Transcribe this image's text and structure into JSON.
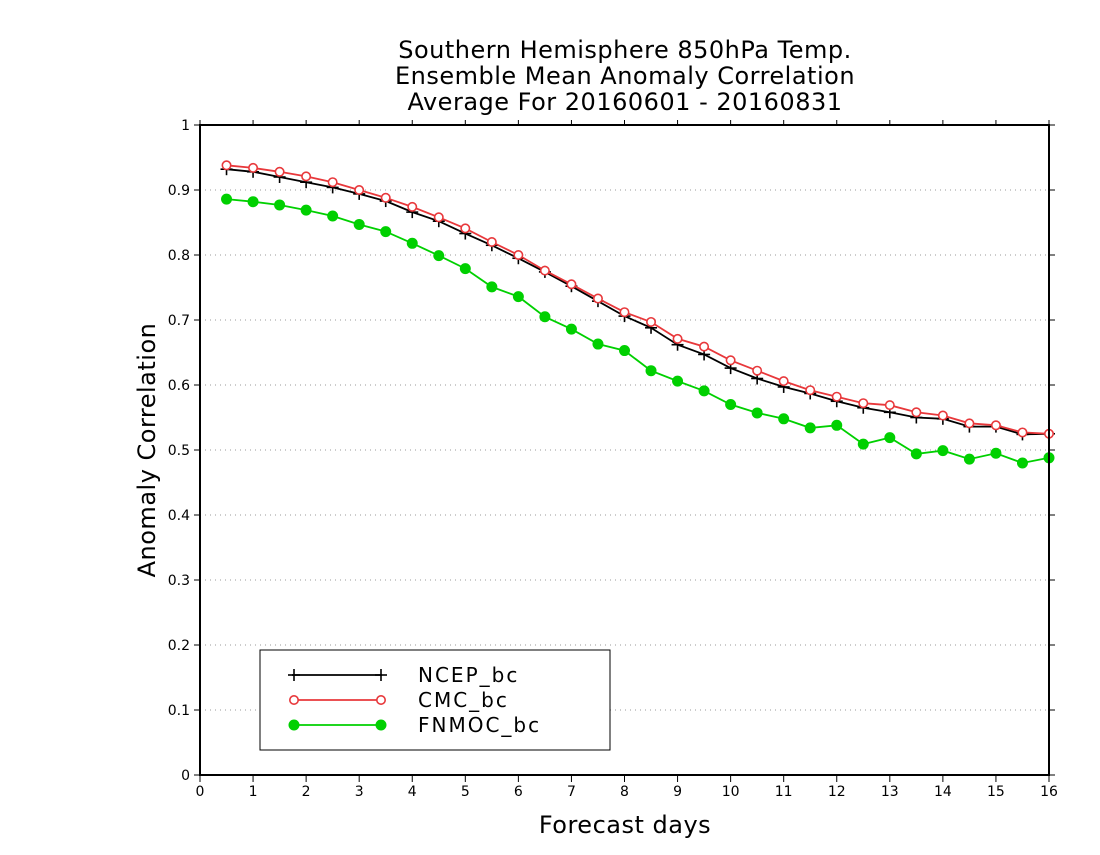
{
  "chart_data": {
    "type": "line",
    "title": [
      "Southern Hemisphere 850hPa Temp.",
      "Ensemble Mean Anomaly Correlation",
      "Average For 20160601 - 20160831"
    ],
    "xlabel": "Forecast days",
    "ylabel": "Anomaly Correlation",
    "xlim": [
      0,
      16
    ],
    "ylim": [
      0,
      1
    ],
    "xticks": [
      "0",
      "1",
      "2",
      "3",
      "4",
      "5",
      "6",
      "7",
      "8",
      "9",
      "10",
      "11",
      "12",
      "13",
      "14",
      "15",
      "16"
    ],
    "yticks": [
      "0",
      "0.1",
      "0.2",
      "0.3",
      "0.4",
      "0.5",
      "0.6",
      "0.7",
      "0.8",
      "0.9",
      "1"
    ],
    "grid": "dotted horizontal",
    "legend_position": "bottom-left",
    "x": [
      0.5,
      1,
      1.5,
      2,
      2.5,
      3,
      3.5,
      4,
      4.5,
      5,
      5.5,
      6,
      6.5,
      7,
      7.5,
      8,
      8.5,
      9,
      9.5,
      10,
      10.5,
      11,
      11.5,
      12,
      12.5,
      13,
      13.5,
      14,
      14.5,
      15,
      15.5,
      16
    ],
    "series": [
      {
        "name": "NCEP_bc",
        "color": "#000000",
        "marker": "plus",
        "values": [
          0.932,
          0.928,
          0.92,
          0.912,
          0.904,
          0.894,
          0.883,
          0.866,
          0.852,
          0.833,
          0.815,
          0.795,
          0.774,
          0.752,
          0.729,
          0.706,
          0.688,
          0.662,
          0.647,
          0.626,
          0.61,
          0.597,
          0.587,
          0.575,
          0.565,
          0.558,
          0.55,
          0.548,
          0.536,
          0.536,
          0.524,
          0.525
        ]
      },
      {
        "name": "CMC_bc",
        "color": "#e8383b",
        "marker": "circle-open",
        "values": [
          0.938,
          0.934,
          0.928,
          0.921,
          0.912,
          0.9,
          0.888,
          0.874,
          0.858,
          0.841,
          0.82,
          0.8,
          0.776,
          0.755,
          0.733,
          0.712,
          0.697,
          0.671,
          0.659,
          0.638,
          0.622,
          0.606,
          0.592,
          0.582,
          0.572,
          0.569,
          0.558,
          0.553,
          0.541,
          0.538,
          0.527,
          0.525
        ]
      },
      {
        "name": "FNMOC_bc",
        "color": "#00d000",
        "marker": "circle-filled",
        "values": [
          0.886,
          0.882,
          0.877,
          0.869,
          0.86,
          0.847,
          0.836,
          0.818,
          0.799,
          0.779,
          0.751,
          0.736,
          0.705,
          0.686,
          0.663,
          0.653,
          0.622,
          0.606,
          0.591,
          0.57,
          0.557,
          0.548,
          0.534,
          0.538,
          0.509,
          0.519,
          0.494,
          0.499,
          0.486,
          0.495,
          0.48,
          0.488
        ]
      }
    ]
  }
}
